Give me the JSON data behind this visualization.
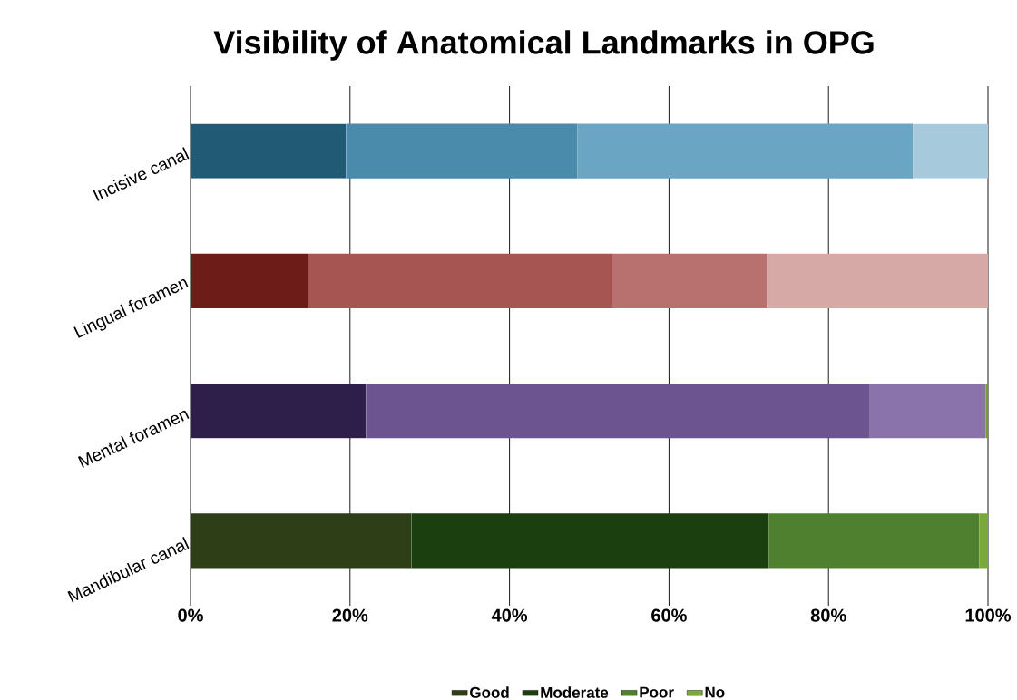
{
  "chart_data": {
    "type": "bar",
    "orientation": "horizontal",
    "stacked": true,
    "title": "Visibility of Anatomical Landmarks in OPG",
    "categories": [
      "Incisive canal",
      "Lingual foramen",
      "Mental foramen",
      "Mandibular canal"
    ],
    "series": [
      {
        "name": "Good",
        "color": "#2e3e16",
        "colors": [
          "#215a75",
          "#6e1c18",
          "#2d1f4a",
          "#2e3e16"
        ],
        "values": [
          19.5,
          14.7,
          22,
          27.7
        ]
      },
      {
        "name": "Moderate",
        "color": "#1c3f10",
        "colors": [
          "#4a8aab",
          "#a65552",
          "#6c5490",
          "#1c3f10"
        ],
        "values": [
          29,
          38.2,
          63.1,
          44.8
        ]
      },
      {
        "name": "Poor",
        "color": "#4f8030",
        "colors": [
          "#6aa6c4",
          "#b8716f",
          "#8a72aa",
          "#4f8030"
        ],
        "values": [
          42.1,
          19.4,
          14.6,
          26.4
        ]
      },
      {
        "name": "No",
        "color": "#7aa83a",
        "colors": [
          "#a6cadb",
          "#d6a8a6",
          "#7a9a3a",
          "#7aa83a"
        ],
        "values": [
          9.4,
          27.7,
          0.3,
          1.1
        ]
      }
    ],
    "xlim": [
      0,
      100
    ],
    "xticks": [
      {
        "value": 0,
        "label": "0%"
      },
      {
        "value": 20,
        "label": "20%"
      },
      {
        "value": 40,
        "label": "40%"
      },
      {
        "value": 60,
        "label": "60%"
      },
      {
        "value": 80,
        "label": "80%"
      },
      {
        "value": 100,
        "label": "100%"
      }
    ],
    "grid": "x",
    "legend": "bottom"
  }
}
